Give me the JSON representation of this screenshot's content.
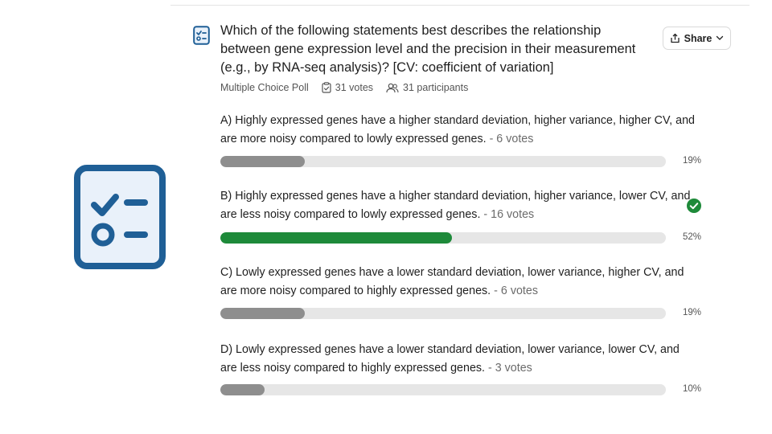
{
  "poll": {
    "question": "Which of the following statements best describes the relationship between gene expression level and the precision in their measurement (e.g., by RNA-seq analysis)? [CV: coefficient of variation]",
    "type_label": "Multiple Choice Poll",
    "votes_label": "31 votes",
    "participants_label": "31 participants",
    "share_label": "Share"
  },
  "options": [
    {
      "text": "A) Highly expressed genes have a higher standard deviation, higher variance, higher CV, and are more noisy compared to lowly expressed genes.",
      "votes": "- 6 votes",
      "percent": "19%",
      "fill_fraction": 0.19,
      "correct": false
    },
    {
      "text": "B) Highly expressed genes have a higher standard deviation, higher variance, lower CV, and are less noisy compared to lowly expressed genes.",
      "votes": "- 16 votes",
      "percent": "52%",
      "fill_fraction": 0.52,
      "correct": true
    },
    {
      "text": "C) Lowly expressed genes have a lower standard deviation, lower variance, higher CV, and are more noisy compared to highly expressed genes.",
      "votes": "- 6 votes",
      "percent": "19%",
      "fill_fraction": 0.19,
      "correct": false
    },
    {
      "text": "D) Lowly expressed genes have a lower standard deviation, lower variance, lower CV, and are less noisy compared to highly expressed genes.",
      "votes": "- 3 votes",
      "percent": "10%",
      "fill_fraction": 0.1,
      "correct": false
    }
  ],
  "colors": {
    "bar_default": "#8e8e8e",
    "bar_correct": "#1e8a3a",
    "track": "#e6e6e6",
    "icon_blue": "#1f5f96",
    "icon_fill": "#e9f1fa"
  },
  "icons": {
    "poll": "poll-checklist-icon",
    "large": "large-checklist-icon",
    "votes": "clipboard-check-icon",
    "participants": "users-icon",
    "share": "share-icon",
    "chevron": "chevron-down-icon",
    "correct": "correct-check-icon"
  }
}
